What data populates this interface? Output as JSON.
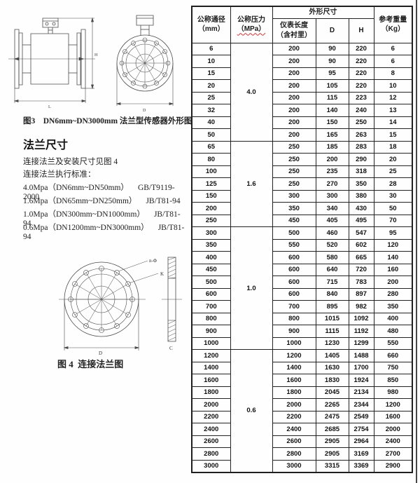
{
  "figure3": {
    "caption": "图3    DN6mm~DN3000mm 法兰型传感器外形图",
    "labels": {
      "h": "H",
      "l": "L",
      "d": "D"
    }
  },
  "flange_section": {
    "heading": "法兰尺寸",
    "line1": "连接法兰及安装尺寸见图 4",
    "line2": "连接法兰执行标准：",
    "standards": [
      {
        "range": "4.0Mpa（DN6mm~DN50mm）",
        "code": "GB/T9119-2000"
      },
      {
        "range": "1.6Mpa（DN65mm~DN250mm）",
        "code": "JB/T81-94"
      },
      {
        "range": "1.0Mpa（DN300mm~DN1000mm）",
        "code": "JB/T81-94"
      },
      {
        "range": "0.6Mpa（DN1200mm~DN3000mm）",
        "code": "JB/T81-94"
      }
    ]
  },
  "figure4": {
    "caption": "图 4  连接法兰图",
    "labels": {
      "n_phi": "n-Φ",
      "k": "K",
      "d": "D",
      "c": "C"
    }
  },
  "table": {
    "header": {
      "col1_line1": "公称通径",
      "col1_line2": "（mm）",
      "col2_line1": "公称压力",
      "col2_line2": "（MPa）",
      "group": "外形尺寸",
      "col3_line1": "仪表长度",
      "col3_line2": "（含衬里）",
      "col4": "D",
      "col5": "H",
      "col6_line1": "参考重量",
      "col6_line2": "（Kg）"
    },
    "groups": [
      {
        "pressure": "4.0",
        "rows": [
          [
            6,
            200,
            90,
            220,
            6
          ],
          [
            10,
            200,
            90,
            220,
            6
          ],
          [
            15,
            200,
            95,
            220,
            8
          ],
          [
            20,
            200,
            105,
            220,
            10
          ],
          [
            25,
            200,
            115,
            223,
            12
          ],
          [
            32,
            200,
            140,
            240,
            13
          ],
          [
            40,
            200,
            150,
            250,
            14
          ],
          [
            50,
            200,
            165,
            263,
            15
          ]
        ]
      },
      {
        "pressure": "1.6",
        "rows": [
          [
            65,
            250,
            185,
            283,
            18
          ],
          [
            80,
            250,
            200,
            290,
            20
          ],
          [
            100,
            250,
            235,
            318,
            25
          ],
          [
            125,
            250,
            270,
            350,
            28
          ],
          [
            150,
            300,
            300,
            380,
            30
          ],
          [
            200,
            350,
            340,
            430,
            50
          ],
          [
            250,
            450,
            405,
            495,
            70
          ]
        ]
      },
      {
        "pressure": "1.0",
        "rows": [
          [
            300,
            500,
            460,
            547,
            95
          ],
          [
            350,
            550,
            520,
            602,
            120
          ],
          [
            400,
            600,
            580,
            665,
            140
          ],
          [
            450,
            600,
            640,
            720,
            160
          ],
          [
            500,
            600,
            715,
            783,
            200
          ],
          [
            600,
            600,
            840,
            897,
            280
          ],
          [
            700,
            700,
            895,
            982,
            350
          ],
          [
            800,
            800,
            1015,
            1092,
            400
          ],
          [
            900,
            900,
            1115,
            1192,
            480
          ],
          [
            1000,
            1000,
            1230,
            1299,
            550
          ]
        ]
      },
      {
        "pressure": "0.6",
        "rows": [
          [
            1200,
            1200,
            1405,
            1488,
            660
          ],
          [
            1400,
            1400,
            1630,
            1700,
            750
          ],
          [
            1600,
            1600,
            1830,
            1924,
            850
          ],
          [
            1800,
            1800,
            2045,
            2134,
            980
          ],
          [
            2000,
            2000,
            2265,
            2344,
            1200
          ],
          [
            2200,
            2200,
            2475,
            2549,
            1600
          ],
          [
            2400,
            2400,
            2685,
            2754,
            2000
          ],
          [
            2600,
            2600,
            2905,
            2964,
            2400
          ],
          [
            2800,
            2800,
            2905,
            3169,
            2700
          ],
          [
            3000,
            3000,
            3315,
            3369,
            2900
          ]
        ]
      }
    ]
  }
}
